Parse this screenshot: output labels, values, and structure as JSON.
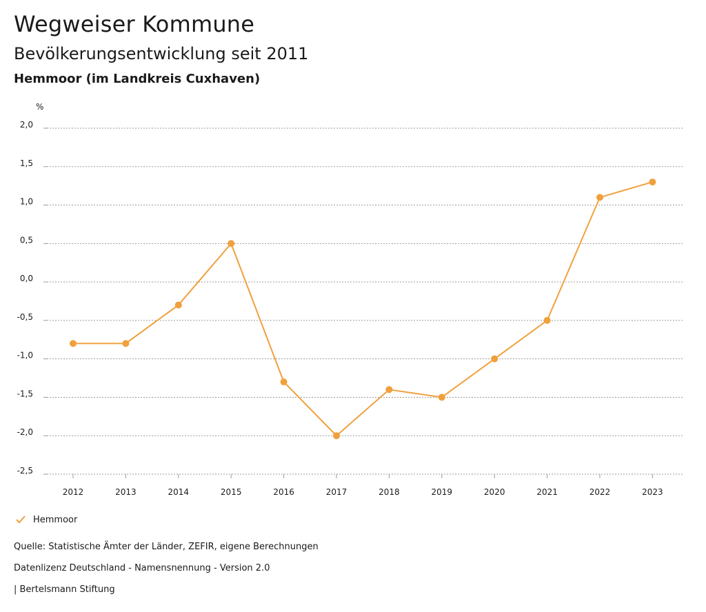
{
  "header": {
    "title": "Wegweiser Kommune",
    "subtitle": "Bevölkerungsentwicklung seit 2011",
    "region": "Hemmoor (im Landkreis Cuxhaven)"
  },
  "chart_data": {
    "type": "line",
    "ylabel": "%",
    "xlabel": "",
    "x": [
      "2012",
      "2013",
      "2014",
      "2015",
      "2016",
      "2017",
      "2018",
      "2019",
      "2020",
      "2021",
      "2022",
      "2023"
    ],
    "series": [
      {
        "name": "Hemmoor",
        "values": [
          -0.8,
          -0.8,
          -0.3,
          0.5,
          -1.3,
          -2.0,
          -1.4,
          -1.5,
          -1.0,
          -0.5,
          1.1,
          1.3
        ]
      }
    ],
    "ylim": [
      -2.5,
      2.0
    ],
    "yticks": [
      2.0,
      1.5,
      1.0,
      0.5,
      0.0,
      -0.5,
      -1.0,
      -1.5,
      -2.0,
      -2.5
    ],
    "ytick_labels": [
      "2,0",
      "1,5",
      "1,0",
      "0,5",
      "0,0",
      "-0,5",
      "-1,0",
      "-1,5",
      "-2,0",
      "-2,5"
    ],
    "grid": true,
    "legend_position": "bottom-left",
    "series_color": "#f0a03c"
  },
  "legend": {
    "label": "Hemmoor"
  },
  "footer": {
    "source": "Quelle: Statistische Ämter der Länder, ZEFIR, eigene Berechnungen",
    "license": "Datenlizenz Deutschland - Namensnennung - Version 2.0",
    "org": "| Bertelsmann Stiftung"
  }
}
